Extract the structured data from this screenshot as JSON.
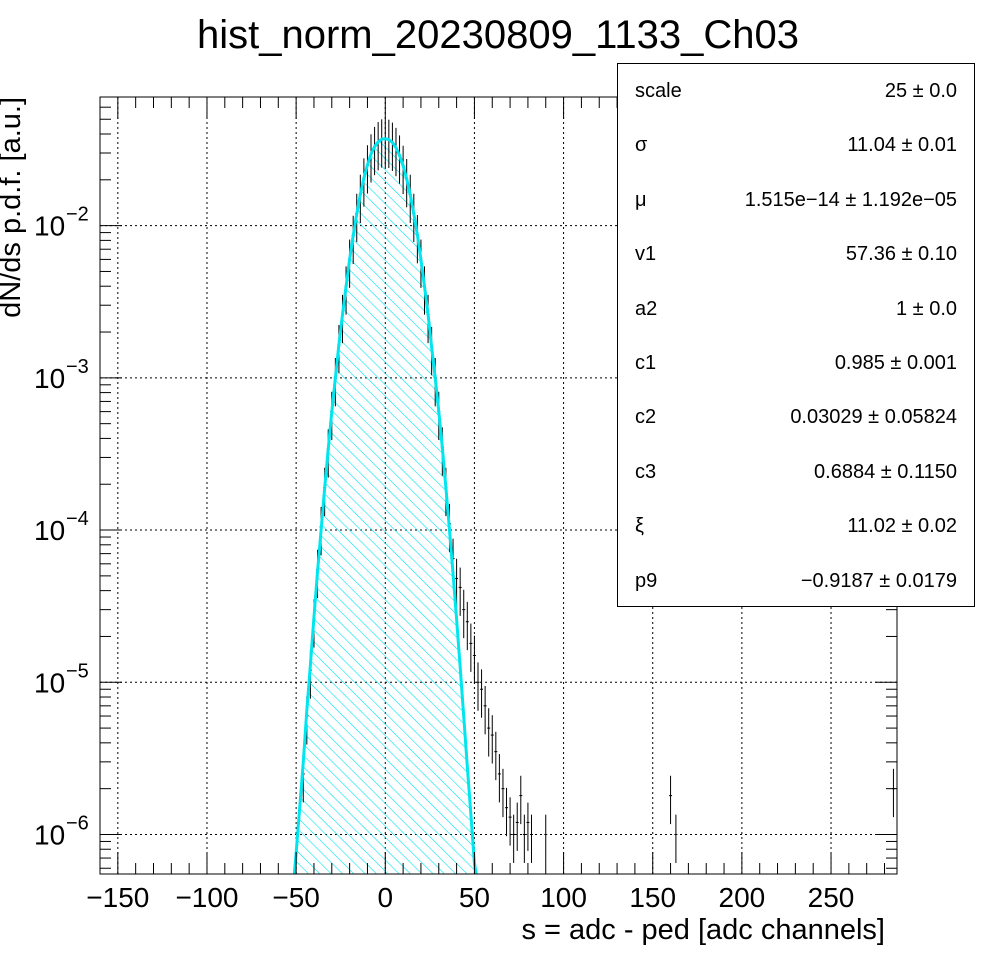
{
  "chart_data": {
    "type": "histogram",
    "title": "hist_norm_20230809_1133_Ch03",
    "xlabel": "s = adc - ped [adc channels]",
    "ylabel": "dN/ds p.d.f. [a.u.]",
    "y_scale": "log",
    "xlim": [
      -160,
      287
    ],
    "ylim": [
      5.5e-07,
      0.07
    ],
    "grid": true,
    "x_ticks": [
      -150,
      -100,
      -50,
      0,
      50,
      100,
      150,
      200,
      250
    ],
    "x_tick_labels": [
      "−150",
      "−100",
      "−50",
      "0",
      "50",
      "100",
      "150",
      "200",
      "250"
    ],
    "y_ticks": [
      {
        "value": 1e-06,
        "base": "10",
        "exp": "−6"
      },
      {
        "value": 1e-05,
        "base": "10",
        "exp": "−5"
      },
      {
        "value": 0.0001,
        "base": "10",
        "exp": "−4"
      },
      {
        "value": 0.001,
        "base": "10",
        "exp": "−3"
      },
      {
        "value": 0.01,
        "base": "10",
        "exp": "−2"
      }
    ],
    "fit_function": {
      "color": "#00e5ee",
      "fill_pattern": "hatched",
      "x": [
        -51,
        -50,
        -48,
        -46,
        -44,
        -42,
        -40,
        -38,
        -36,
        -34,
        -32,
        -30,
        -28,
        -26,
        -24,
        -22,
        -20,
        -18,
        -16,
        -14,
        -12,
        -10,
        -8,
        -6,
        -4,
        -2,
        0,
        2,
        4,
        6,
        8,
        10,
        12,
        14,
        16,
        18,
        20,
        22,
        24,
        26,
        28,
        30,
        32,
        34,
        36,
        38,
        40,
        42,
        44,
        46,
        48,
        50,
        51
      ],
      "y": [
        5.5e-07,
        7.5e-07,
        1.5e-06,
        3e-06,
        6.5e-06,
        1.3e-05,
        2.7e-05,
        5.3e-05,
        0.0001,
        0.00019,
        0.00034,
        0.0006,
        0.001,
        0.00165,
        0.0026,
        0.004,
        0.006,
        0.0086,
        0.012,
        0.016,
        0.0205,
        0.025,
        0.0295,
        0.033,
        0.0355,
        0.037,
        0.0372,
        0.0368,
        0.0352,
        0.0325,
        0.029,
        0.0248,
        0.0203,
        0.016,
        0.012,
        0.0087,
        0.006,
        0.004,
        0.0026,
        0.0016,
        0.001,
        0.0006,
        0.00035,
        0.00019,
        0.0001,
        5.2e-05,
        2.6e-05,
        1.25e-05,
        6e-06,
        2.8e-06,
        1.35e-06,
        6.5e-07,
        5.5e-07
      ]
    },
    "histogram": {
      "color": "#000000",
      "x": [
        -46,
        -44,
        -42,
        -40,
        -38,
        -36,
        -34,
        -32,
        -30,
        -28,
        -26,
        -24,
        -22,
        -20,
        -18,
        -16,
        -14,
        -12,
        -10,
        -8,
        -6,
        -4,
        -2,
        0,
        2,
        4,
        6,
        8,
        10,
        12,
        14,
        16,
        18,
        20,
        22,
        24,
        26,
        28,
        30,
        32,
        34,
        36,
        38,
        40,
        42,
        44,
        46,
        48,
        50,
        52,
        54,
        56,
        58,
        60,
        62,
        64,
        66,
        68,
        70,
        72,
        74,
        76,
        78,
        80,
        82,
        90,
        160,
        163,
        285
      ],
      "y": [
        2.5e-06,
        6e-06,
        1.2e-05,
        2.6e-05,
        5.5e-05,
        0.000105,
        0.00019,
        0.00034,
        0.0006,
        0.001,
        0.00165,
        0.0026,
        0.004,
        0.006,
        0.0086,
        0.012,
        0.016,
        0.0205,
        0.025,
        0.0295,
        0.033,
        0.0355,
        0.037,
        0.0372,
        0.0368,
        0.0352,
        0.0325,
        0.029,
        0.0248,
        0.0203,
        0.016,
        0.012,
        0.0087,
        0.006,
        0.004,
        0.0026,
        0.0016,
        0.001,
        0.0006,
        0.00035,
        0.00019,
        0.00011,
        6.5e-05,
        4.8e-05,
        4.2e-05,
        3e-05,
        2.5e-05,
        1.8e-05,
        1.5e-05,
        1e-05,
        9e-06,
        7e-06,
        5e-06,
        4.5e-06,
        3.5e-06,
        2.5e-06,
        2e-06,
        1.5e-06,
        1.3e-06,
        1e-06,
        1.2e-06,
        1.8e-06,
        1e-06,
        1.2e-06,
        1e-06,
        1e-06,
        1.8e-06,
        1e-06,
        2e-06
      ],
      "y_err_rel": 0.35
    }
  },
  "stats": {
    "rows": [
      {
        "name": "scale",
        "value": "25 ± 0.0"
      },
      {
        "name": "σ",
        "value": "11.04 ± 0.01"
      },
      {
        "name": "μ",
        "value": "1.515e−14 ± 1.192e−05"
      },
      {
        "name": "v1",
        "value": "57.36 ± 0.10"
      },
      {
        "name": "a2",
        "value": "1 ± 0.0"
      },
      {
        "name": "c1",
        "value": "0.985 ± 0.001"
      },
      {
        "name": "c2",
        "value": "0.03029 ± 0.05824"
      },
      {
        "name": "c3",
        "value": "0.6884 ± 0.1150"
      },
      {
        "name": "ξ",
        "value": "11.02 ± 0.02"
      },
      {
        "name": "p9",
        "value": "−0.9187 ± 0.0179"
      }
    ]
  }
}
